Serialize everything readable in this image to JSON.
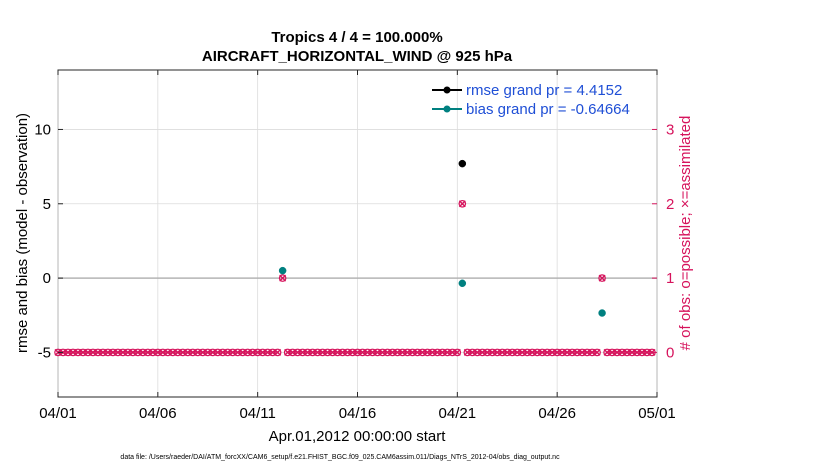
{
  "chart_data": {
    "type": "scatter",
    "title_line1": "Tropics 4 / 4 = 100.000%",
    "title_line2": "AIRCRAFT_HORIZONTAL_WIND @ 925 hPa",
    "xlabel": "Apr.01,2012 00:00:00 start",
    "ylabel_left": "rmse and bias (model - observation)",
    "ylabel_right": "# of obs: o=possible; ×=assimilated",
    "footnote": "data file: /Users/raeder/DAI/ATM_forcXX/CAM6_setup/f.e21.FHIST_BGC.f09_025.CAM6assim.011/Diags_NTrS_2012-04/obs_diag_output.nc",
    "x_ticks": [
      {
        "day": 0,
        "label": "04/01"
      },
      {
        "day": 5,
        "label": "04/06"
      },
      {
        "day": 10,
        "label": "04/11"
      },
      {
        "day": 15,
        "label": "04/16"
      },
      {
        "day": 20,
        "label": "04/21"
      },
      {
        "day": 25,
        "label": "04/26"
      },
      {
        "day": 30,
        "label": "05/01"
      }
    ],
    "xlim_days": [
      0,
      30
    ],
    "y_left_ticks": [
      {
        "value": -5,
        "label": "-5"
      },
      {
        "value": 0,
        "label": "0"
      },
      {
        "value": 5,
        "label": "5"
      },
      {
        "value": 10,
        "label": "10"
      }
    ],
    "ylim_left": [
      -8,
      14
    ],
    "y_right_ticks": [
      {
        "value": 0,
        "label": "0"
      },
      {
        "value": 1,
        "label": "1"
      },
      {
        "value": 2,
        "label": "2"
      },
      {
        "value": 3,
        "label": "3"
      }
    ],
    "ylim_right": [
      -0.6,
      3.8
    ],
    "grid": true,
    "legend_position": "top-right",
    "series": [
      {
        "name": "rmse grand pr = 4.4152",
        "color": "#000000",
        "marker": "dot",
        "points": [
          [
            20.25,
            7.7
          ]
        ]
      },
      {
        "name": "bias grand pr = -0.64664",
        "color": "#008080",
        "marker": "dot",
        "points": [
          [
            11.25,
            0.5
          ],
          [
            20.25,
            -0.35
          ],
          [
            27.25,
            -2.35
          ]
        ]
      }
    ],
    "obs_counts": {
      "color": "#d6135c",
      "bin_days": 0.25,
      "n_bins": 120,
      "start_day": 0,
      "nonzero": [
        [
          11.25,
          1
        ],
        [
          20.25,
          2
        ],
        [
          27.25,
          1
        ]
      ]
    },
    "zero_line_left": 0
  }
}
